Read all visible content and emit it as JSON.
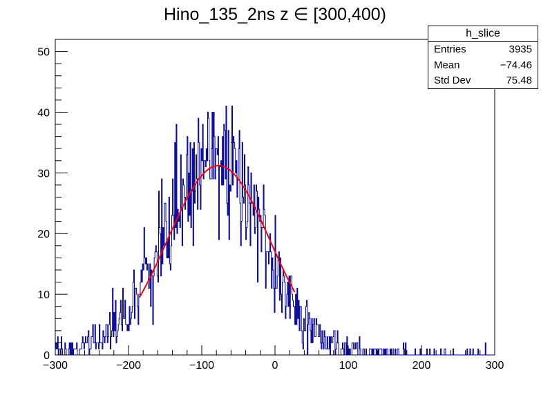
{
  "chart_data": {
    "type": "bar",
    "title": "Hino_135_2ns z  ∈ [300,400)",
    "xlabel": "",
    "ylabel": "",
    "xlim": [
      -300,
      300
    ],
    "ylim": [
      0,
      52
    ],
    "x_ticks": [
      "−300",
      "−200",
      "−100",
      "0",
      "100",
      "200",
      "300"
    ],
    "x_tick_values": [
      -300,
      -200,
      -100,
      0,
      100,
      200,
      300
    ],
    "y_ticks": [
      "0",
      "10",
      "20",
      "30",
      "40",
      "50"
    ],
    "y_tick_values": [
      0,
      10,
      20,
      30,
      40,
      50
    ],
    "histogram": {
      "name": "h_slice",
      "bin_width": 1,
      "color": "#000099",
      "envelope": {
        "x": [
          -300,
          -280,
          -260,
          -240,
          -220,
          -200,
          -180,
          -160,
          -140,
          -120,
          -100,
          -80,
          -60,
          -40,
          -20,
          0,
          20,
          40,
          60,
          80,
          100,
          120,
          140,
          160,
          180,
          200,
          220,
          240,
          260,
          280,
          300
        ],
        "y": [
          0.7,
          1.0,
          1.5,
          2.5,
          4.5,
          7.0,
          12.0,
          18.0,
          24.0,
          28.0,
          30.5,
          31.2,
          30.0,
          26.5,
          21.0,
          15.0,
          10.0,
          6.0,
          3.5,
          1.8,
          1.0,
          0.6,
          0.4,
          0.3,
          0.2,
          0.2,
          0.15,
          0.1,
          0.1,
          0.1,
          0.1
        ]
      }
    },
    "fit": {
      "type": "gaussian",
      "color": "#ff0000",
      "amplitude": 31.2,
      "mean": -77,
      "sigma": 70,
      "range": [
        -185,
        27
      ]
    },
    "stats_box": {
      "title": "h_slice",
      "rows": [
        {
          "label": "Entries",
          "value": "3935"
        },
        {
          "label": "Mean",
          "value": "−74.46"
        },
        {
          "label": "Std Dev",
          "value": "75.48"
        }
      ]
    }
  }
}
